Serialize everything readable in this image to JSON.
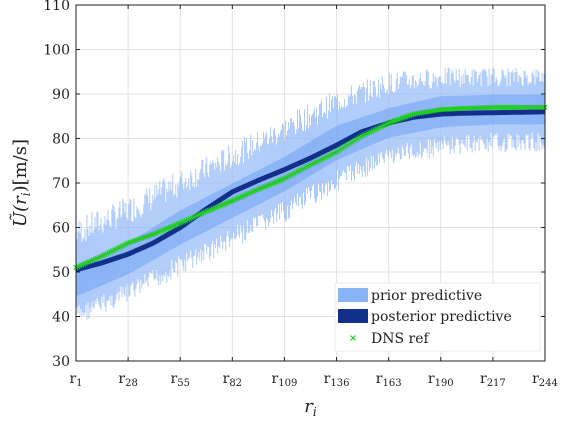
{
  "chart_data": {
    "type": "line",
    "title": "",
    "xlabel": "r_i",
    "ylabel": "Ũ(r_i) [m/s]",
    "x_ticks": [
      {
        "base": "r",
        "sub": "1",
        "index": 1
      },
      {
        "base": "r",
        "sub": "28",
        "index": 28
      },
      {
        "base": "r",
        "sub": "55",
        "index": 55
      },
      {
        "base": "r",
        "sub": "82",
        "index": 82
      },
      {
        "base": "r",
        "sub": "109",
        "index": 109
      },
      {
        "base": "r",
        "sub": "136",
        "index": 136
      },
      {
        "base": "r",
        "sub": "163",
        "index": 163
      },
      {
        "base": "r",
        "sub": "190",
        "index": 190
      },
      {
        "base": "r",
        "sub": "217",
        "index": 217
      },
      {
        "base": "r",
        "sub": "244",
        "index": 244
      }
    ],
    "xlim": [
      1,
      244
    ],
    "ylim": [
      30,
      110
    ],
    "y_ticks": [
      30,
      40,
      50,
      60,
      70,
      80,
      90,
      100,
      110
    ],
    "grid": true,
    "legend_position": "bottom-right",
    "series": [
      {
        "name": "prior predictive",
        "kind": "band",
        "color": "#8ab4f8",
        "x": [
          1,
          28,
          55,
          82,
          109,
          136,
          163,
          190,
          217,
          244
        ],
        "lower": [
          38,
          43,
          49,
          55,
          61,
          68,
          74,
          76,
          77,
          77
        ],
        "upper": [
          62,
          67,
          73,
          79,
          85,
          91,
          95,
          96,
          96,
          96
        ],
        "mean": [
          48,
          53,
          60,
          66,
          72,
          79,
          83.5,
          86,
          86.5,
          86.5
        ]
      },
      {
        "name": "posterior predictive",
        "kind": "line",
        "color": "#12308a",
        "x": [
          1,
          14,
          28,
          41,
          55,
          68,
          82,
          95,
          109,
          122,
          136,
          149,
          163,
          176,
          190,
          203,
          217,
          230,
          244
        ],
        "y": [
          50.5,
          52,
          54,
          56.5,
          60,
          64,
          68,
          70.5,
          73,
          75.5,
          78.5,
          81.5,
          83.5,
          84.8,
          85.5,
          85.7,
          85.8,
          85.9,
          86
        ]
      },
      {
        "name": "DNS ref",
        "kind": "scatter",
        "color": "#22cc22",
        "marker": "x",
        "x": [
          1,
          14,
          28,
          41,
          55,
          68,
          82,
          95,
          109,
          122,
          136,
          149,
          163,
          176,
          190,
          203,
          217,
          230,
          244
        ],
        "y": [
          51,
          53.5,
          56.5,
          58.5,
          61,
          63.5,
          66,
          68.5,
          71,
          74,
          77,
          80.5,
          83.5,
          85.5,
          86.5,
          86.8,
          87,
          87,
          87
        ]
      }
    ]
  }
}
